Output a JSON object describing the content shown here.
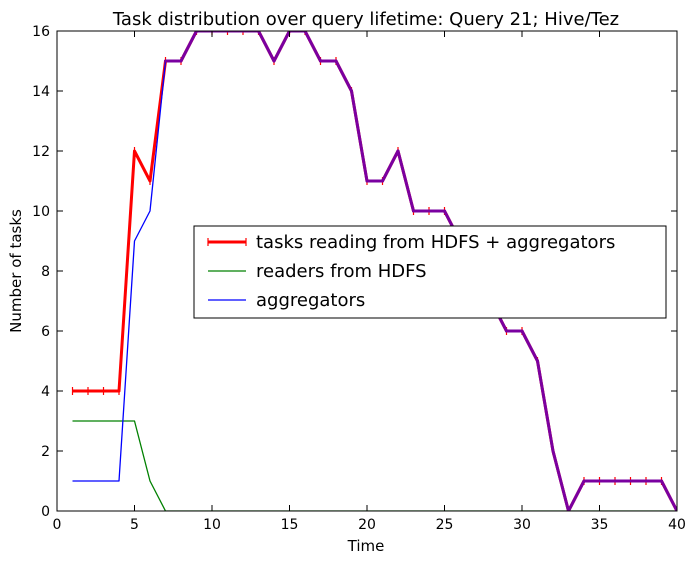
{
  "chart_data": {
    "type": "line",
    "title": "Task distribution over query lifetime: Query 21; Hive/Tez",
    "xlabel": "Time",
    "ylabel": "Number of tasks",
    "xlim": [
      0,
      40
    ],
    "ylim": [
      0,
      16
    ],
    "xticks": [
      0,
      5,
      10,
      15,
      20,
      25,
      30,
      35,
      40
    ],
    "yticks": [
      0,
      2,
      4,
      6,
      8,
      10,
      12,
      14,
      16
    ],
    "grid": false,
    "legend_position": "center-right",
    "x": [
      1,
      2,
      3,
      4,
      5,
      6,
      7,
      8,
      9,
      10,
      11,
      12,
      13,
      14,
      15,
      16,
      17,
      18,
      19,
      20,
      21,
      22,
      23,
      24,
      25,
      26,
      27,
      28,
      29,
      30,
      31,
      32,
      33,
      34,
      35,
      36,
      37,
      38,
      39,
      40
    ],
    "series": [
      {
        "name": "tasks reading from HDFS + aggregators",
        "color": "#ff0000",
        "marker": "tick",
        "values": [
          4,
          4,
          4,
          4,
          12,
          11,
          15,
          15,
          16,
          16,
          16,
          16,
          16,
          15,
          16,
          16,
          15,
          15,
          14,
          11,
          11,
          12,
          10,
          10,
          10,
          9,
          8,
          7,
          6,
          6,
          5,
          2,
          0,
          1,
          1,
          1,
          1,
          1,
          1,
          0
        ]
      },
      {
        "name": "readers from HDFS",
        "color": "#008000",
        "marker": "none",
        "values": [
          3,
          3,
          3,
          3,
          3,
          1,
          0,
          0,
          0,
          0,
          0,
          0,
          0,
          0,
          0,
          0,
          0,
          0,
          0,
          0,
          0,
          0,
          0,
          0,
          0,
          0,
          0,
          0,
          0,
          0,
          0,
          0,
          0,
          0,
          0,
          0,
          0,
          0,
          0,
          0
        ]
      },
      {
        "name": "aggregators",
        "color": "#0000ff",
        "marker": "none",
        "values": [
          1,
          1,
          1,
          1,
          9,
          10,
          15,
          15,
          16,
          16,
          16,
          16,
          16,
          15,
          16,
          16,
          15,
          15,
          14,
          11,
          11,
          12,
          10,
          10,
          10,
          9,
          8,
          7,
          6,
          6,
          5,
          2,
          0,
          1,
          1,
          1,
          1,
          1,
          1,
          0
        ]
      }
    ]
  }
}
